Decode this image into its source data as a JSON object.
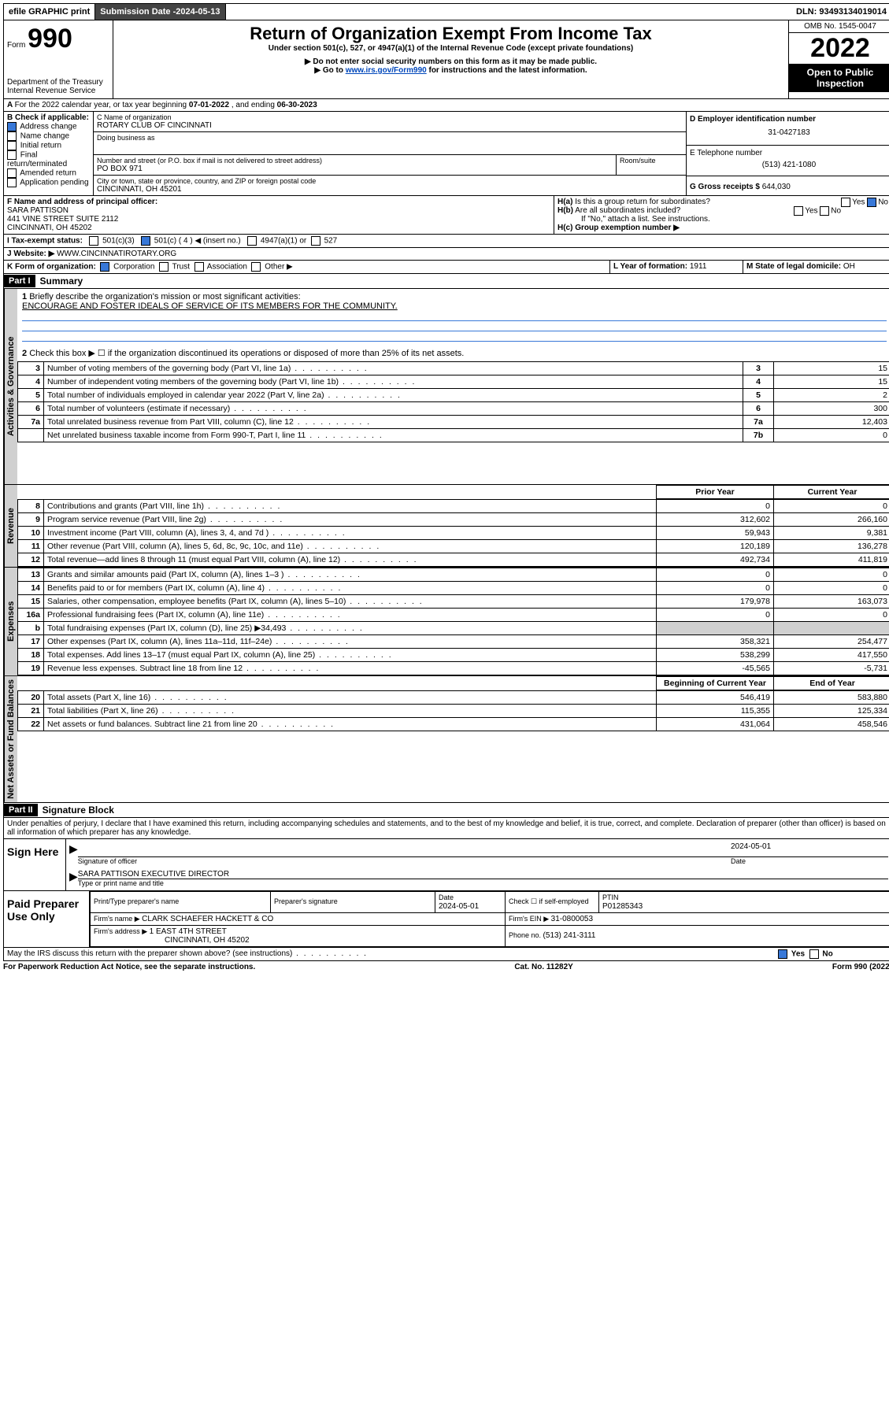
{
  "topbar": {
    "efile": "efile GRAPHIC print",
    "sub_label": "Submission Date - ",
    "sub_date": "2024-05-13",
    "dln_label": "DLN: ",
    "dln": "93493134019014"
  },
  "header": {
    "form_word": "Form",
    "form_num": "990",
    "dept": "Department of the Treasury",
    "irs": "Internal Revenue Service",
    "title": "Return of Organization Exempt From Income Tax",
    "sub1": "Under section 501(c), 527, or 4947(a)(1) of the Internal Revenue Code (except private foundations)",
    "sub2": "▶ Do not enter social security numbers on this form as it may be made public.",
    "sub3a": "▶ Go to ",
    "sub3_link": "www.irs.gov/Form990",
    "sub3b": " for instructions and the latest information.",
    "omb": "OMB No. 1545-0047",
    "year": "2022",
    "open": "Open to Public Inspection"
  },
  "lineA": {
    "text_a": "For the 2022 calendar year, or tax year beginning ",
    "begin": "07-01-2022",
    "text_b": " , and ending ",
    "end": "06-30-2023"
  },
  "boxB": {
    "label": "B Check if applicable:",
    "addr": "Address change",
    "name": "Name change",
    "init": "Initial return",
    "final": "Final return/terminated",
    "amend": "Amended return",
    "app": "Application pending"
  },
  "boxC": {
    "label": "C Name of organization",
    "org": "ROTARY CLUB OF CINCINNATI",
    "dba_label": "Doing business as",
    "addr_label": "Number and street (or P.O. box if mail is not delivered to street address)",
    "room": "Room/suite",
    "addr": "PO BOX 971",
    "city_label": "City or town, state or province, country, and ZIP or foreign postal code",
    "city": "CINCINNATI, OH  45201"
  },
  "boxD": {
    "label": "D Employer identification number",
    "ein": "31-0427183"
  },
  "boxE": {
    "label": "E Telephone number",
    "phone": "(513) 421-1080"
  },
  "boxG": {
    "label": "G Gross receipts $ ",
    "amt": "644,030"
  },
  "boxF": {
    "label": "F Name and address of principal officer:",
    "name": "SARA PATTISON",
    "addr1": "441 VINE STREET SUITE 2112",
    "addr2": "CINCINNATI, OH  45202"
  },
  "boxH": {
    "a": "H(a)  Is this a group return for subordinates?",
    "b": "H(b)  Are all subordinates included?",
    "b_note": "If \"No,\" attach a list. See instructions.",
    "c": "H(c)  Group exemption number ▶",
    "yes": "Yes",
    "no": "No"
  },
  "lineI": {
    "label": "I  Tax-exempt status:",
    "o1": "501(c)(3)",
    "o2": "501(c) ( 4 ) ◀ (insert no.)",
    "o3": "4947(a)(1) or",
    "o4": "527"
  },
  "lineJ": {
    "label": "J  Website: ▶ ",
    "url": "WWW.CINCINNATIROTARY.ORG"
  },
  "lineK": {
    "label": "K Form of organization:",
    "corp": "Corporation",
    "trust": "Trust",
    "assoc": "Association",
    "other": "Other ▶"
  },
  "lineL": {
    "label": "L Year of formation: ",
    "val": "1911"
  },
  "lineM": {
    "label": "M State of legal domicile: ",
    "val": "OH"
  },
  "part1": {
    "bar": "Part I",
    "title": "Summary"
  },
  "summary": {
    "q1": "Briefly describe the organization's mission or most significant activities:",
    "mission": "ENCOURAGE AND FOSTER IDEALS OF SERVICE OF ITS MEMBERS FOR THE COMMUNITY.",
    "q2": "Check this box ▶ ☐  if the organization discontinued its operations or disposed of more than 25% of its net assets.",
    "rows_ag": [
      {
        "n": "3",
        "t": "Number of voting members of the governing body (Part VI, line 1a)",
        "b": "3",
        "v": "15"
      },
      {
        "n": "4",
        "t": "Number of independent voting members of the governing body (Part VI, line 1b)",
        "b": "4",
        "v": "15"
      },
      {
        "n": "5",
        "t": "Total number of individuals employed in calendar year 2022 (Part V, line 2a)",
        "b": "5",
        "v": "2"
      },
      {
        "n": "6",
        "t": "Total number of volunteers (estimate if necessary)",
        "b": "6",
        "v": "300"
      },
      {
        "n": "7a",
        "t": "Total unrelated business revenue from Part VIII, column (C), line 12",
        "b": "7a",
        "v": "12,403"
      },
      {
        "n": "",
        "t": "Net unrelated business taxable income from Form 990-T, Part I, line 11",
        "b": "7b",
        "v": "0"
      }
    ],
    "col_prior": "Prior Year",
    "col_curr": "Current Year",
    "rev": [
      {
        "n": "8",
        "t": "Contributions and grants (Part VIII, line 1h)",
        "p": "0",
        "c": "0"
      },
      {
        "n": "9",
        "t": "Program service revenue (Part VIII, line 2g)",
        "p": "312,602",
        "c": "266,160"
      },
      {
        "n": "10",
        "t": "Investment income (Part VIII, column (A), lines 3, 4, and 7d )",
        "p": "59,943",
        "c": "9,381"
      },
      {
        "n": "11",
        "t": "Other revenue (Part VIII, column (A), lines 5, 6d, 8c, 9c, 10c, and 11e)",
        "p": "120,189",
        "c": "136,278"
      },
      {
        "n": "12",
        "t": "Total revenue—add lines 8 through 11 (must equal Part VIII, column (A), line 12)",
        "p": "492,734",
        "c": "411,819"
      }
    ],
    "exp": [
      {
        "n": "13",
        "t": "Grants and similar amounts paid (Part IX, column (A), lines 1–3 )",
        "p": "0",
        "c": "0"
      },
      {
        "n": "14",
        "t": "Benefits paid to or for members (Part IX, column (A), line 4)",
        "p": "0",
        "c": "0"
      },
      {
        "n": "15",
        "t": "Salaries, other compensation, employee benefits (Part IX, column (A), lines 5–10)",
        "p": "179,978",
        "c": "163,073"
      },
      {
        "n": "16a",
        "t": "Professional fundraising fees (Part IX, column (A), line 11e)",
        "p": "0",
        "c": "0"
      },
      {
        "n": "b",
        "t": "Total fundraising expenses (Part IX, column (D), line 25) ▶34,493",
        "p": "",
        "c": ""
      },
      {
        "n": "17",
        "t": "Other expenses (Part IX, column (A), lines 11a–11d, 11f–24e)",
        "p": "358,321",
        "c": "254,477"
      },
      {
        "n": "18",
        "t": "Total expenses. Add lines 13–17 (must equal Part IX, column (A), line 25)",
        "p": "538,299",
        "c": "417,550"
      },
      {
        "n": "19",
        "t": "Revenue less expenses. Subtract line 18 from line 12",
        "p": "-45,565",
        "c": "-5,731"
      }
    ],
    "col_beg": "Beginning of Current Year",
    "col_end": "End of Year",
    "net": [
      {
        "n": "20",
        "t": "Total assets (Part X, line 16)",
        "p": "546,419",
        "c": "583,880"
      },
      {
        "n": "21",
        "t": "Total liabilities (Part X, line 26)",
        "p": "115,355",
        "c": "125,334"
      },
      {
        "n": "22",
        "t": "Net assets or fund balances. Subtract line 21 from line 20",
        "p": "431,064",
        "c": "458,546"
      }
    ],
    "vlab_ag": "Activities & Governance",
    "vlab_rev": "Revenue",
    "vlab_exp": "Expenses",
    "vlab_net": "Net Assets or Fund Balances"
  },
  "part2": {
    "bar": "Part II",
    "title": "Signature Block"
  },
  "sig": {
    "decl": "Under penalties of perjury, I declare that I have examined this return, including accompanying schedules and statements, and to the best of my knowledge and belief, it is true, correct, and complete. Declaration of preparer (other than officer) is based on all information of which preparer has any knowledge.",
    "sign_here": "Sign Here",
    "sig_officer": "Signature of officer",
    "date": "Date",
    "date_v": "2024-05-01",
    "name_title": "SARA PATTISON  EXECUTIVE DIRECTOR",
    "type_name": "Type or print name and title",
    "paid": "Paid Preparer Use Only",
    "prep_name": "Print/Type preparer's name",
    "prep_sig": "Preparer's signature",
    "prep_date": "2024-05-01",
    "check_if": "Check ☐ if self-employed",
    "ptin_l": "PTIN",
    "ptin": "P01285343",
    "firm_name_l": "Firm's name    ▶ ",
    "firm_name": "CLARK SCHAEFER HACKETT & CO",
    "firm_ein_l": "Firm's EIN ▶ ",
    "firm_ein": "31-0800053",
    "firm_addr_l": "Firm's address ▶ ",
    "firm_addr1": "1 EAST 4TH STREET",
    "firm_addr2": "CINCINNATI, OH  45202",
    "phone_l": "Phone no. ",
    "phone": "(513) 241-3111",
    "may": "May the IRS discuss this return with the preparer shown above? (see instructions)",
    "yes": "Yes",
    "no": "No"
  },
  "footer": {
    "pra": "For Paperwork Reduction Act Notice, see the separate instructions.",
    "cat": "Cat. No. 11282Y",
    "form": "Form 990 (2022)"
  }
}
